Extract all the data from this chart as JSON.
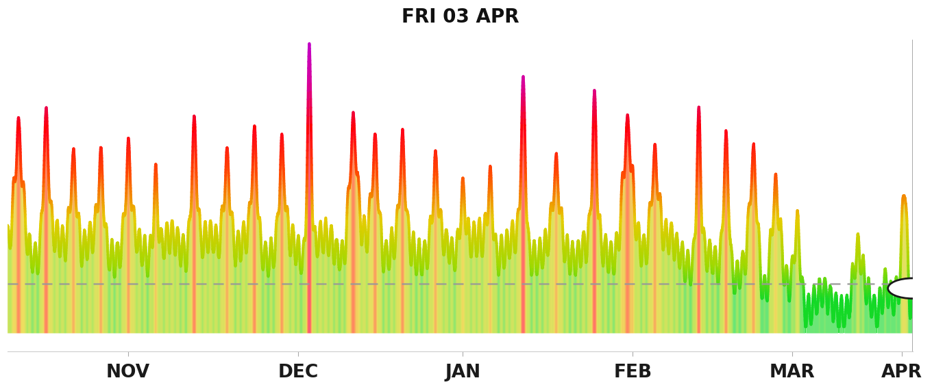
{
  "title": "FRI 03 APR",
  "title_fontsize": 20,
  "title_fontweight": "bold",
  "background_color": "#ffffff",
  "dashed_line_y": 22,
  "dashed_line_color": "#999999",
  "x_tick_labels": [
    "NOV",
    "DEC",
    "JAN",
    "FEB",
    "MAR",
    "APR"
  ],
  "ylim": [
    -8,
    130
  ],
  "xlim": [
    0,
    165
  ],
  "endpoint_circle_color": "#222222"
}
